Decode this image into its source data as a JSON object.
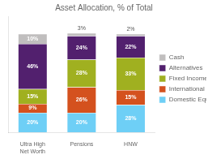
{
  "chart_data": {
    "type": "bar",
    "title": "Asset Allocation, % of Total",
    "categories": [
      "Ultra High\nNet Worth",
      "Pensions",
      "HNW"
    ],
    "series": [
      {
        "name": "Domestic Equities",
        "color": "#6ecff6",
        "values": [
          20,
          20,
          28
        ],
        "value_labels": [
          "20%",
          "20%",
          "28%"
        ]
      },
      {
        "name": "International Equities",
        "color": "#d4511e",
        "values": [
          9,
          26,
          15
        ],
        "value_labels": [
          "9%",
          "26%",
          "15%"
        ]
      },
      {
        "name": "Fixed Income",
        "color": "#a0b020",
        "values": [
          15,
          28,
          33
        ],
        "value_labels": [
          "15%",
          "28%",
          "33%"
        ]
      },
      {
        "name": "Alternatives",
        "color": "#52206e",
        "values": [
          46,
          24,
          22
        ],
        "value_labels": [
          "46%",
          "24%",
          "22%"
        ]
      },
      {
        "name": "Cash",
        "color": "#c0bebe",
        "values": [
          10,
          3,
          2
        ],
        "value_labels": [
          "10%",
          "3%",
          "2%"
        ]
      }
    ],
    "stacked": true,
    "data_labels": true,
    "legend": "right",
    "ylim": [
      0,
      118
    ],
    "yticks": [],
    "tick_labels": "x",
    "grid": false
  }
}
